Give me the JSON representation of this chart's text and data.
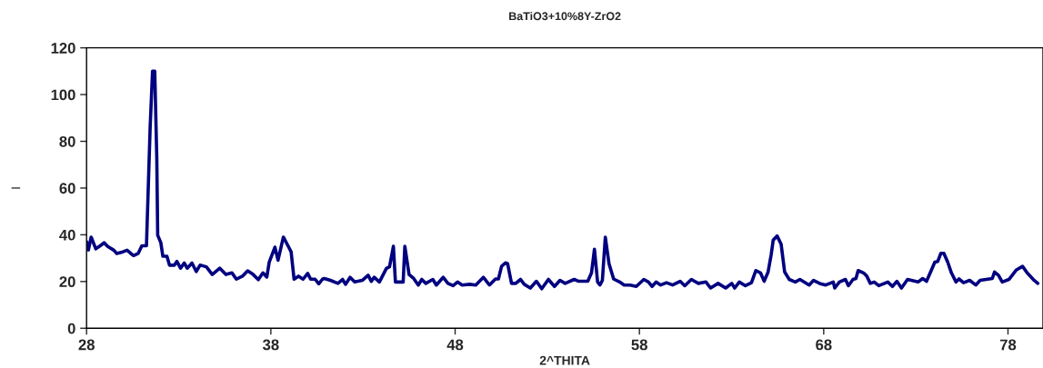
{
  "chart_data": {
    "type": "line",
    "title": "BaTiO3+10%8Y-ZrO2",
    "xlabel": "2^THITA",
    "ylabel": "I",
    "xlim": [
      28,
      79.9
    ],
    "xticks": [
      28,
      38,
      48,
      58,
      68,
      78
    ],
    "ylim": [
      0,
      120
    ],
    "yticks": [
      0,
      20,
      40,
      60,
      80,
      100,
      120
    ],
    "grid": false,
    "marker": "none",
    "line_style": "solid",
    "series": [
      {
        "color": "#000080",
        "x": [
          28.0,
          28.1,
          28.25,
          28.5,
          28.74,
          28.95,
          29.15,
          29.48,
          29.64,
          29.97,
          30.2,
          30.4,
          30.55,
          30.8,
          31.0,
          31.25,
          31.45,
          31.58,
          31.7,
          31.81,
          31.86,
          32.03,
          32.14,
          32.36,
          32.5,
          32.77,
          32.9,
          33.1,
          33.3,
          33.46,
          33.72,
          33.95,
          34.16,
          34.5,
          34.82,
          35.23,
          35.56,
          35.89,
          36.13,
          36.46,
          36.74,
          37.04,
          37.32,
          37.57,
          37.78,
          37.91,
          38.22,
          38.39,
          38.68,
          38.93,
          39.1,
          39.26,
          39.5,
          39.75,
          40.0,
          40.16,
          40.4,
          40.6,
          40.8,
          40.9,
          41.23,
          41.64,
          41.89,
          42.05,
          42.3,
          42.55,
          42.96,
          43.28,
          43.45,
          43.61,
          43.89,
          44.27,
          44.44,
          44.65,
          44.76,
          45.18,
          45.27,
          45.5,
          45.75,
          46.0,
          46.19,
          46.41,
          46.79,
          46.98,
          47.35,
          47.61,
          47.89,
          48.13,
          48.38,
          48.79,
          49.12,
          49.53,
          49.86,
          50.19,
          50.35,
          50.52,
          50.73,
          50.85,
          51.06,
          51.29,
          51.55,
          51.75,
          52.08,
          52.41,
          52.7,
          53.06,
          53.39,
          53.69,
          53.97,
          54.46,
          54.71,
          55.2,
          55.4,
          55.56,
          55.73,
          55.86,
          55.99,
          56.15,
          56.35,
          56.6,
          56.93,
          57.17,
          57.5,
          57.83,
          58.24,
          58.49,
          58.69,
          58.9,
          59.15,
          59.47,
          59.8,
          60.21,
          60.46,
          60.82,
          61.2,
          61.61,
          61.86,
          62.27,
          62.68,
          63.01,
          63.17,
          63.42,
          63.75,
          64.08,
          64.32,
          64.57,
          64.77,
          64.98,
          65.15,
          65.26,
          65.47,
          65.69,
          65.88,
          66.13,
          66.46,
          66.71,
          67.21,
          67.45,
          67.78,
          68.11,
          68.52,
          68.6,
          68.85,
          69.18,
          69.34,
          69.59,
          69.75,
          69.87,
          70.16,
          70.33,
          70.53,
          70.74,
          70.99,
          71.48,
          71.73,
          71.97,
          72.22,
          72.55,
          73.12,
          73.37,
          73.58,
          73.78,
          74.03,
          74.19,
          74.36,
          74.52,
          74.73,
          74.93,
          75.18,
          75.34,
          75.59,
          75.92,
          76.25,
          76.49,
          76.82,
          77.15,
          77.27,
          77.48,
          77.69,
          78.05,
          78.46,
          78.79,
          79.04,
          79.37,
          79.62
        ],
        "values": [
          37,
          33.5,
          39,
          34,
          35.3,
          36.6,
          35,
          33.4,
          32,
          32.7,
          33.4,
          32,
          31.1,
          32,
          35.3,
          35.3,
          86,
          110,
          110,
          73,
          39.8,
          36.6,
          30.8,
          30.8,
          27,
          27,
          28.6,
          25.7,
          27.9,
          25.7,
          27.9,
          24.3,
          27,
          26.3,
          23,
          25.7,
          23,
          23.7,
          21,
          22.3,
          24.6,
          23,
          20.8,
          23.7,
          21.9,
          28.2,
          34.7,
          29.1,
          39,
          35.3,
          32.7,
          21,
          22.3,
          21,
          23.5,
          21,
          21,
          19,
          21,
          21.3,
          20.5,
          19.2,
          20.9,
          18.8,
          21.8,
          19.8,
          20.5,
          22.7,
          20.1,
          21.8,
          19.8,
          25.6,
          26.3,
          35.1,
          19.8,
          19.8,
          35.1,
          23,
          21.3,
          18.5,
          20.9,
          19.2,
          20.9,
          18.5,
          21.8,
          19.2,
          18.2,
          19.8,
          18.5,
          18.8,
          18.5,
          21.8,
          18.5,
          21.1,
          21.1,
          26.5,
          28,
          27.6,
          19.2,
          19.2,
          20.9,
          18.8,
          17.2,
          20.1,
          16.9,
          20.9,
          17.9,
          20.5,
          19.2,
          20.9,
          20.1,
          20.1,
          23.7,
          33.8,
          19.8,
          18.5,
          20.5,
          39,
          27.6,
          21.1,
          19.8,
          18.5,
          18.5,
          17.9,
          20.9,
          19.8,
          17.9,
          19.8,
          18.5,
          19.5,
          18.5,
          20.1,
          18.2,
          20.9,
          19.2,
          19.8,
          17.2,
          19.2,
          17.2,
          19.2,
          17.2,
          19.8,
          18.2,
          19.5,
          24.7,
          23.7,
          20.1,
          24,
          31.5,
          37.7,
          39.5,
          36,
          24.1,
          20.9,
          19.8,
          20.9,
          18.5,
          20.5,
          19.2,
          18.5,
          19.8,
          17.2,
          19.8,
          20.9,
          18.2,
          20.9,
          21.3,
          24.7,
          23.7,
          22.4,
          19.2,
          19.8,
          18.2,
          19.8,
          17.9,
          20.1,
          17.2,
          20.9,
          19.8,
          21.3,
          20.1,
          23.7,
          28.3,
          28.6,
          32.1,
          32.1,
          28.3,
          23.7,
          19.8,
          21.1,
          19.5,
          20.5,
          18.5,
          20.5,
          20.9,
          21.3,
          24.1,
          22.7,
          19.8,
          20.9,
          25,
          26.5,
          23.7,
          20.9,
          19.2
        ]
      }
    ]
  }
}
